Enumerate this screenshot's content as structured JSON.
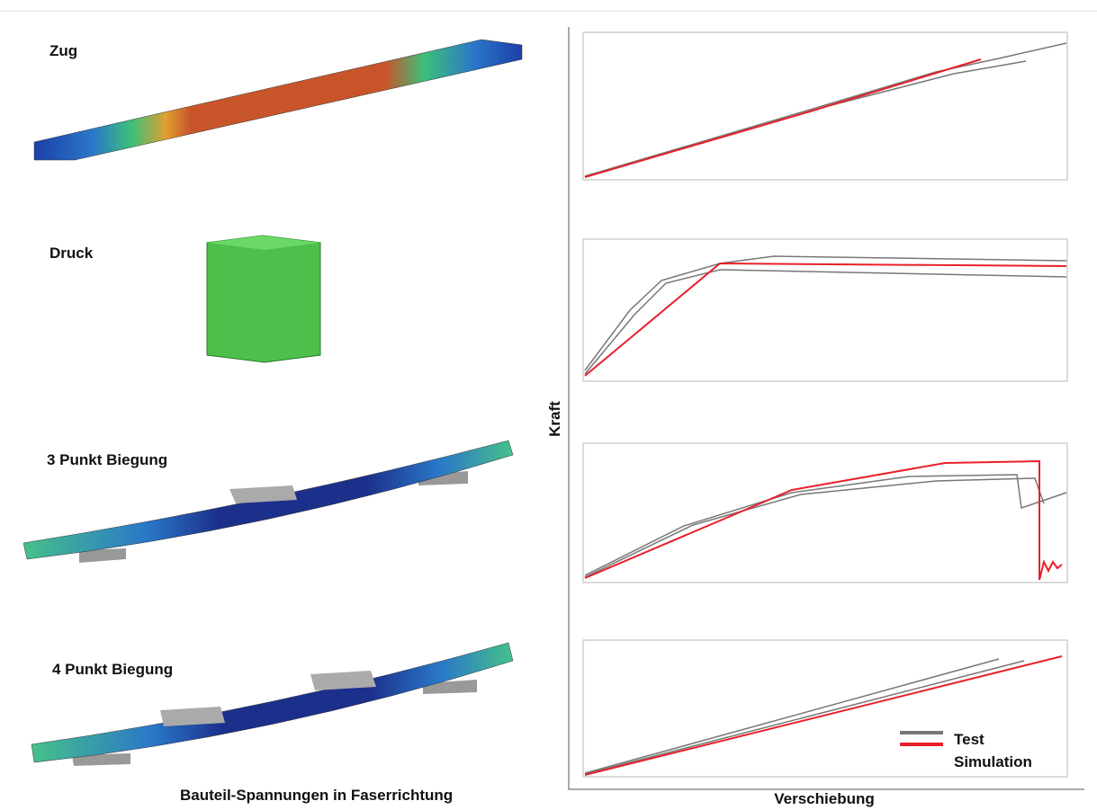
{
  "left": {
    "labels": [
      "Zug",
      "Druck",
      "3 Punkt Biegung",
      "4 Punkt Biegung"
    ],
    "caption": "Bauteil-Spannungen in Faserrichtung"
  },
  "right": {
    "y_label": "Kraft",
    "x_label": "Verschiebung",
    "legend": [
      {
        "name": "Test",
        "color": "#777777"
      },
      {
        "name": "Simulation",
        "color": "#e8202a"
      }
    ]
  }
}
